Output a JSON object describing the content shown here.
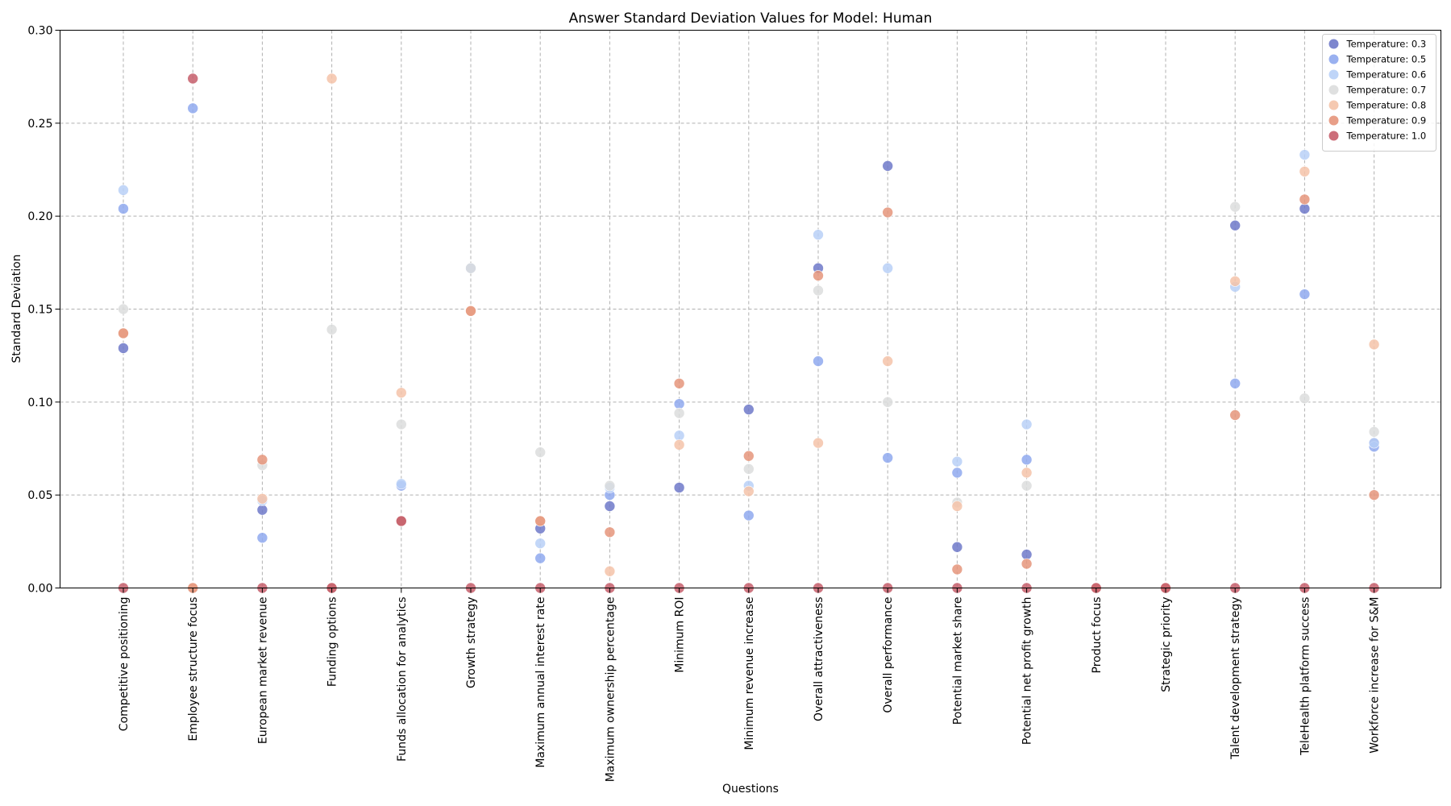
{
  "chart_data": {
    "type": "scatter",
    "title": "Answer Standard Deviation Values for Model: Human",
    "xlabel": "Questions",
    "ylabel": "Standard Deviation",
    "ylim": [
      0,
      0.3
    ],
    "yticks": [
      "0.00",
      "0.05",
      "0.10",
      "0.15",
      "0.20",
      "0.25",
      "0.30"
    ],
    "grid": true,
    "legend_position": "top-right",
    "categories": [
      "Competitive positioning",
      "Employee structure focus",
      "European market revenue",
      "Funding options",
      "Funds allocation for analytics",
      "Growth strategy",
      "Maximum annual interest rate",
      "Maximum ownership percentage",
      "Minimum ROI",
      "Minimum revenue increase",
      "Overall attractiveness",
      "Overall performance",
      "Potential market share",
      "Potential net profit growth",
      "Product focus",
      "Strategic priority",
      "Talent development strategy",
      "TeleHealth platform success",
      "Workforce increase for S&M"
    ],
    "series": [
      {
        "name": "Temperature: 0.3",
        "color": "#6f79c9",
        "values": [
          0.129,
          0.0,
          0.042,
          0.0,
          0.036,
          0.172,
          0.032,
          0.044,
          0.054,
          0.096,
          0.172,
          0.227,
          0.022,
          0.018,
          0.0,
          0.0,
          0.195,
          0.204,
          0.078
        ]
      },
      {
        "name": "Temperature: 0.5",
        "color": "#8fa9ee",
        "values": [
          0.204,
          0.258,
          0.027,
          0.0,
          0.055,
          0.172,
          0.016,
          0.05,
          0.099,
          0.039,
          0.122,
          0.07,
          0.062,
          0.069,
          0.0,
          0.0,
          0.11,
          0.158,
          0.076
        ]
      },
      {
        "name": "Temperature: 0.6",
        "color": "#b8d0f7",
        "values": [
          0.214,
          0.0,
          0.047,
          0.0,
          0.056,
          0.172,
          0.024,
          0.054,
          0.082,
          0.055,
          0.19,
          0.172,
          0.068,
          0.088,
          0.0,
          0.0,
          0.162,
          0.233,
          0.078
        ]
      },
      {
        "name": "Temperature: 0.7",
        "color": "#dcdddd",
        "values": [
          0.15,
          0.0,
          0.066,
          0.139,
          0.088,
          0.172,
          0.073,
          0.055,
          0.094,
          0.064,
          0.16,
          0.1,
          0.046,
          0.055,
          0.0,
          0.0,
          0.205,
          0.102,
          0.084
        ]
      },
      {
        "name": "Temperature: 0.8",
        "color": "#f4c3a9",
        "values": [
          0.137,
          0.0,
          0.048,
          0.274,
          0.105,
          0.149,
          0.036,
          0.009,
          0.077,
          0.052,
          0.078,
          0.122,
          0.044,
          0.062,
          0.0,
          0.0,
          0.165,
          0.224,
          0.131
        ]
      },
      {
        "name": "Temperature: 0.9",
        "color": "#e5957b",
        "values": [
          0.137,
          0.0,
          0.069,
          0.0,
          0.036,
          0.149,
          0.036,
          0.03,
          0.11,
          0.071,
          0.168,
          0.202,
          0.01,
          0.013,
          0.0,
          0.0,
          0.093,
          0.209,
          0.05
        ]
      },
      {
        "name": "Temperature: 1.0",
        "color": "#c65e6b",
        "values": [
          0.0,
          0.274,
          0.0,
          0.0,
          0.036,
          0.0,
          0.0,
          0.0,
          0.0,
          0.0,
          0.0,
          0.0,
          0.0,
          0.0,
          0.0,
          0.0,
          0.0,
          0.0,
          0.0
        ]
      }
    ]
  }
}
